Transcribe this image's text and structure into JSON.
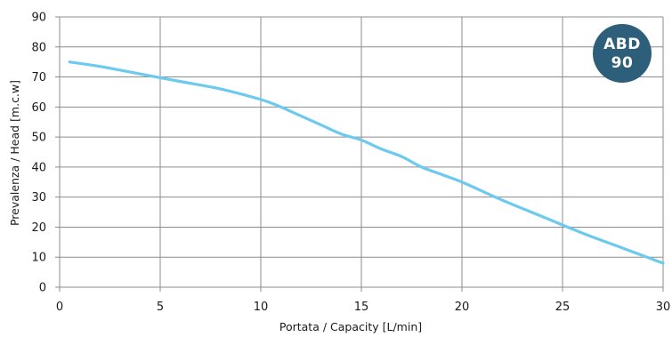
{
  "chart_data": {
    "type": "line",
    "xlabel": "Portata / Capacity [L/min]",
    "ylabel": "Prevalenza  / Head [m.c.w]",
    "xlim": [
      0,
      30
    ],
    "ylim": [
      0,
      90
    ],
    "x_ticks": [
      0,
      5,
      10,
      15,
      20,
      25,
      30
    ],
    "y_ticks": [
      0,
      10,
      20,
      30,
      40,
      50,
      60,
      70,
      80,
      90
    ],
    "grid": true,
    "series": [
      {
        "color": "#6cc9ef",
        "x": [
          0.5,
          2,
          4,
          6,
          8,
          10,
          11,
          12,
          13,
          14,
          15,
          16,
          17,
          18,
          19,
          20,
          22,
          24,
          26,
          28,
          30
        ],
        "y": [
          75,
          73.5,
          71,
          68.5,
          66,
          62.5,
          60,
          57,
          54,
          51,
          49,
          46,
          43.5,
          40,
          37.5,
          35,
          29,
          23.5,
          18,
          13,
          8
        ]
      }
    ],
    "badge": {
      "lines": [
        "ABD",
        "90"
      ],
      "color": "#2e5f7a"
    }
  }
}
